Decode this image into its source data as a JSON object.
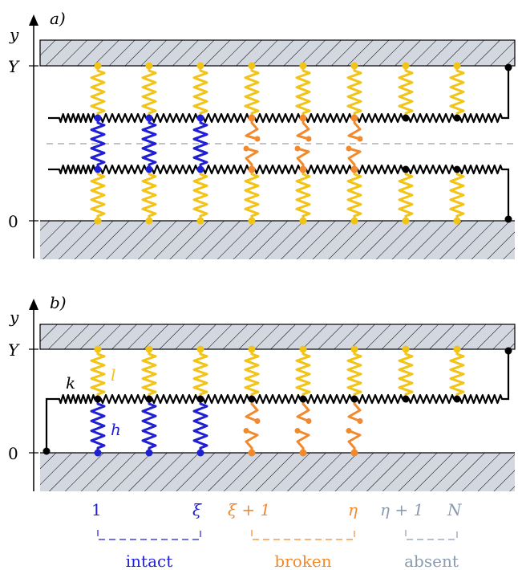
{
  "panel_a": {
    "label": "a)",
    "y_axis_label": "y",
    "tick_top": "Y",
    "tick_bottom": "0"
  },
  "panel_b": {
    "label": "b)",
    "y_axis_label": "y",
    "tick_top": "Y",
    "tick_bottom": "0",
    "spring_labels": {
      "k": "k",
      "l": "l",
      "h": "h"
    }
  },
  "index_labels": {
    "first": "1",
    "xi": "ξ",
    "xi_plus_1": "ξ + 1",
    "eta": "η",
    "eta_plus_1": "η + 1",
    "N": "N"
  },
  "groups": {
    "intact": "intact",
    "broken": "broken",
    "absent": "absent"
  },
  "colors": {
    "intact": "#1f1fd6",
    "broken": "#f08a2c",
    "absent": "#8a9ab0",
    "vertical_spring": "#f2c417",
    "wall_fill": "#d2d7e0",
    "lattice": "#000000"
  },
  "columns": [
    {
      "state": "intact"
    },
    {
      "state": "intact"
    },
    {
      "state": "intact"
    },
    {
      "state": "broken"
    },
    {
      "state": "broken"
    },
    {
      "state": "broken"
    },
    {
      "state": "absent"
    },
    {
      "state": "absent"
    }
  ]
}
